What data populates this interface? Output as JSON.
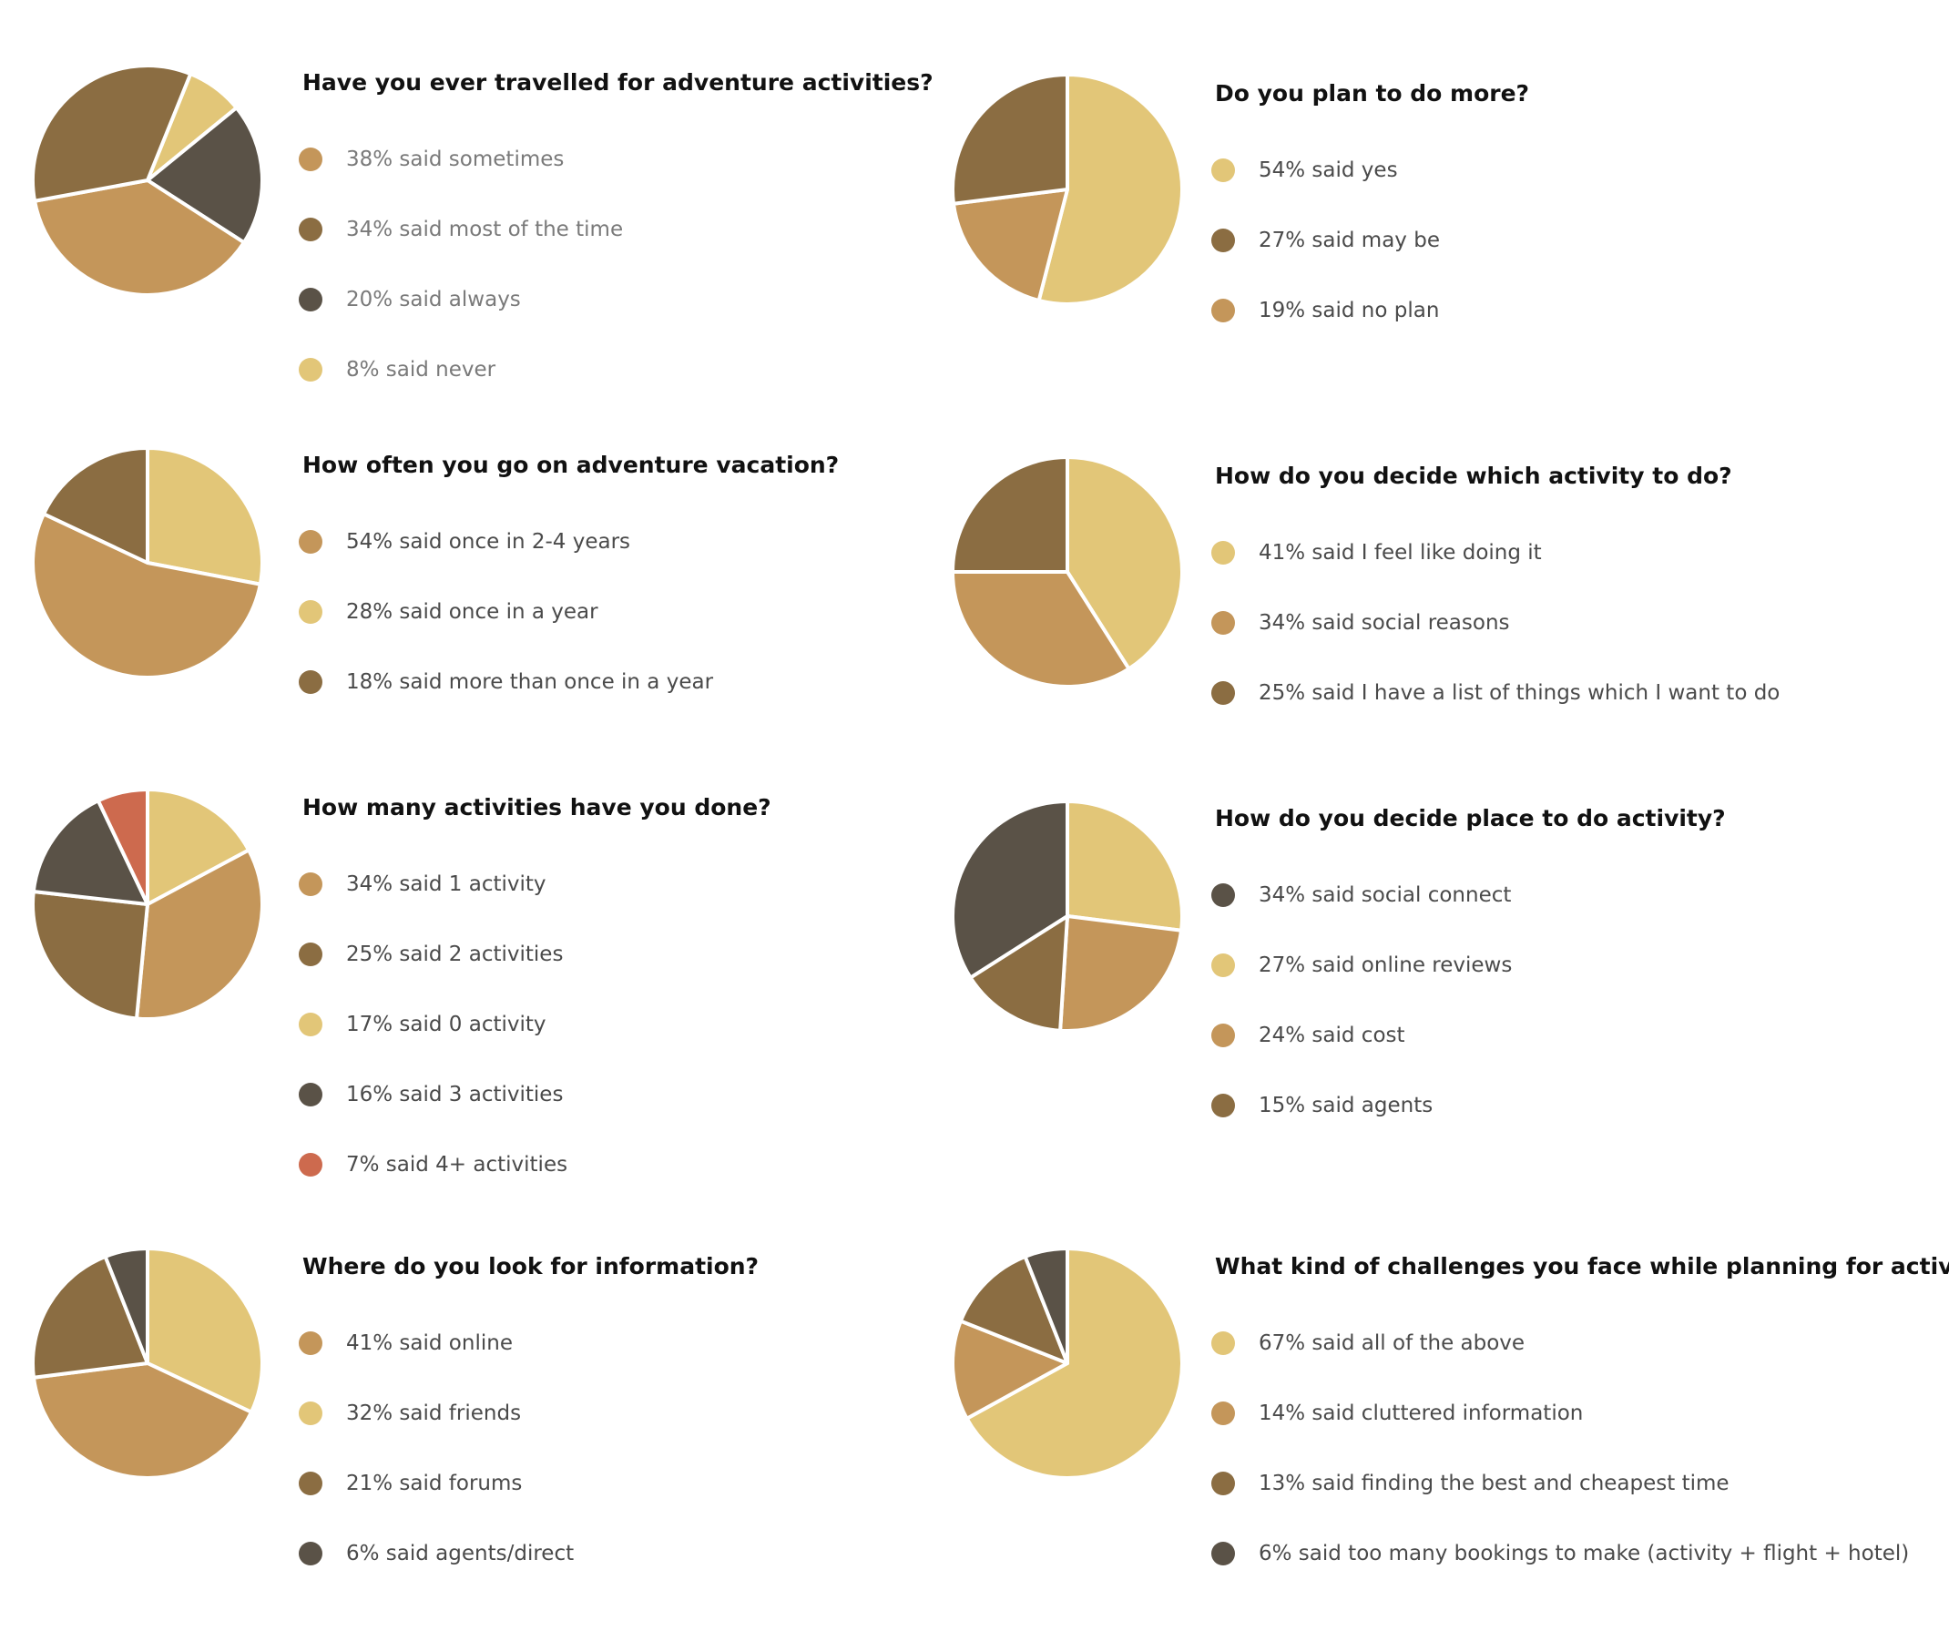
{
  "colors": {
    "gold": "#c4965a",
    "brown": "#8b6d42",
    "charcoal": "#5a5247",
    "sand": "#e2c678",
    "terracotta": "#cd6a4e",
    "slice_border": "#ffffff"
  },
  "chart_data": [
    {
      "type": "pie",
      "title": "Have you ever travelled for adventure activities?",
      "start_angle_deg": 22,
      "slice_order": [
        3,
        2,
        0,
        1
      ],
      "slices": [
        {
          "label": "38% said sometimes",
          "value": 38,
          "color": "gold"
        },
        {
          "label": "34% said most of the time",
          "value": 34,
          "color": "brown"
        },
        {
          "label": "20% said always",
          "value": 20,
          "color": "charcoal"
        },
        {
          "label": "8% said never",
          "value": 8,
          "color": "sand"
        }
      ]
    },
    {
      "type": "pie",
      "title": "Do you plan to do more?",
      "start_angle_deg": 0,
      "slice_order": [
        0,
        2,
        1
      ],
      "slices": [
        {
          "label": "54% said yes",
          "value": 54,
          "color": "sand"
        },
        {
          "label": "27% said may be",
          "value": 27,
          "color": "brown"
        },
        {
          "label": "19% said no plan",
          "value": 19,
          "color": "gold"
        }
      ]
    },
    {
      "type": "pie",
      "title": "How often you go on adventure vacation?",
      "start_angle_deg": 0,
      "slice_order": [
        1,
        0,
        2
      ],
      "slices": [
        {
          "label": "54% said once in 2-4 years",
          "value": 54,
          "color": "gold"
        },
        {
          "label": "28% said once in a year",
          "value": 28,
          "color": "sand"
        },
        {
          "label": "18% said more than once in a year",
          "value": 18,
          "color": "brown"
        }
      ]
    },
    {
      "type": "pie",
      "title": "How do you decide which activity to do?",
      "start_angle_deg": 0,
      "slice_order": [
        0,
        1,
        2
      ],
      "slices": [
        {
          "label": "41% said I feel like doing it",
          "value": 41,
          "color": "sand"
        },
        {
          "label": "34% said social reasons",
          "value": 34,
          "color": "gold"
        },
        {
          "label": "25% said I have a list of things which I want to do",
          "value": 25,
          "color": "brown"
        }
      ]
    },
    {
      "type": "pie",
      "title": "How many activities have you done?",
      "start_angle_deg": 0,
      "slice_order": [
        2,
        0,
        1,
        3,
        4
      ],
      "slices": [
        {
          "label": "34% said 1 activity",
          "value": 34,
          "color": "gold"
        },
        {
          "label": "25% said 2 activities",
          "value": 25,
          "color": "brown"
        },
        {
          "label": "17% said 0 activity",
          "value": 17,
          "color": "sand"
        },
        {
          "label": "16% said 3 activities",
          "value": 16,
          "color": "charcoal"
        },
        {
          "label": "7% said 4+ activities",
          "value": 7,
          "color": "terracotta"
        }
      ]
    },
    {
      "type": "pie",
      "title": "How do you decide place to do activity?",
      "start_angle_deg": 0,
      "slice_order": [
        1,
        2,
        3,
        0
      ],
      "slices": [
        {
          "label": "34% said social connect",
          "value": 34,
          "color": "charcoal"
        },
        {
          "label": "27% said online reviews",
          "value": 27,
          "color": "sand"
        },
        {
          "label": "24% said cost",
          "value": 24,
          "color": "gold"
        },
        {
          "label": "15% said agents",
          "value": 15,
          "color": "brown"
        }
      ]
    },
    {
      "type": "pie",
      "title": "Where do you look for information?",
      "start_angle_deg": 0,
      "slice_order": [
        1,
        0,
        2,
        3
      ],
      "slices": [
        {
          "label": "41% said online",
          "value": 41,
          "color": "gold"
        },
        {
          "label": "32% said friends",
          "value": 32,
          "color": "sand"
        },
        {
          "label": "21% said forums",
          "value": 21,
          "color": "brown"
        },
        {
          "label": "6% said agents/direct",
          "value": 6,
          "color": "charcoal"
        }
      ]
    },
    {
      "type": "pie",
      "title": "What kind of challenges you face while planning for activity?",
      "start_angle_deg": 0,
      "slice_order": [
        0,
        1,
        2,
        3
      ],
      "slices": [
        {
          "label": "67% said all of the above",
          "value": 67,
          "color": "sand"
        },
        {
          "label": "14% said cluttered information",
          "value": 14,
          "color": "gold"
        },
        {
          "label": "13% said finding the best and cheapest time",
          "value": 13,
          "color": "brown"
        },
        {
          "label": "6% said too many bookings to make (activity + flight + hotel)",
          "value": 6,
          "color": "charcoal"
        }
      ]
    }
  ]
}
